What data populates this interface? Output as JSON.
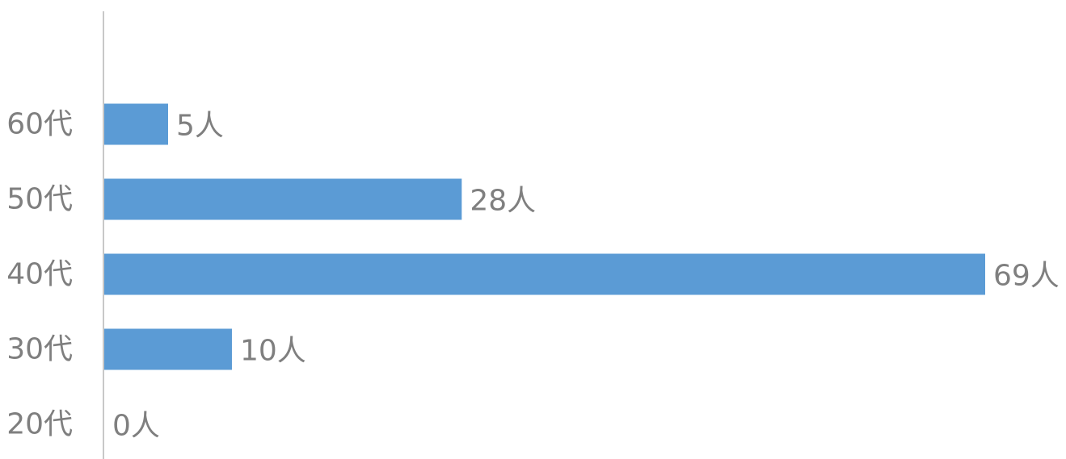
{
  "chart_data": {
    "type": "bar",
    "orientation": "horizontal",
    "categories": [
      "60代",
      "50代",
      "40代",
      "30代",
      "20代"
    ],
    "values": [
      5,
      28,
      69,
      10,
      0
    ],
    "data_labels": [
      "5人",
      "28人",
      "69人",
      "10人",
      "0人"
    ],
    "title": "",
    "xlabel": "",
    "ylabel": "",
    "xlim": [
      0,
      69
    ],
    "grid": false,
    "legend": "none",
    "bar_color": "#5b9bd5",
    "axis_color": "#c8c8c8",
    "label_color": "#7f7f7f"
  }
}
